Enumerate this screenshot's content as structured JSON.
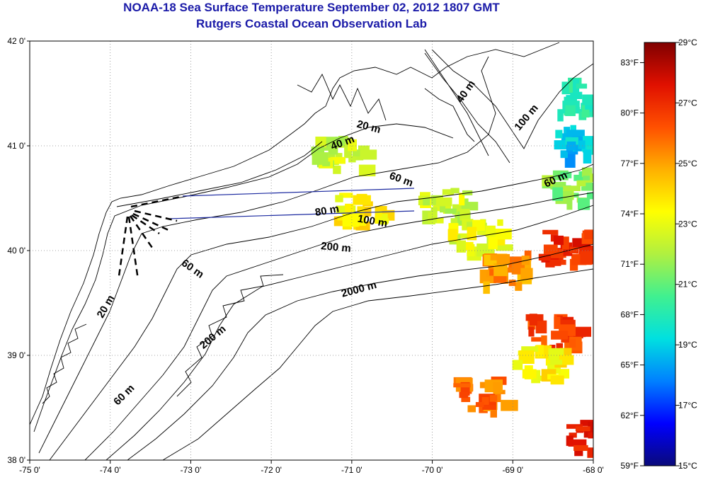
{
  "header": {
    "title": "NOAA-18 Sea Surface Temperature September 02, 2012 1807 GMT",
    "subtitle": "Rutgers Coastal Ocean Observation Lab"
  },
  "map": {
    "lon_ticks": [
      "-75 0'",
      "-74 0'",
      "-73 0'",
      "-72 0'",
      "-71 0'",
      "-70 0'",
      "-69 0'",
      "-68 0'"
    ],
    "lat_ticks": [
      "42 0'",
      "41 0'",
      "40 0'",
      "39 0'",
      "38 0'"
    ],
    "lon_range": [
      -75,
      -68
    ],
    "lat_range": [
      38,
      42
    ],
    "grid": "dotted",
    "contour_labels": [
      {
        "text": "40 m",
        "lon": -69.55,
        "lat": 41.5,
        "angle": -55
      },
      {
        "text": "20 m",
        "lon": -70.8,
        "lat": 41.15,
        "angle": 15
      },
      {
        "text": "40 m",
        "lon": -71.1,
        "lat": 41.0,
        "angle": -20
      },
      {
        "text": "100 m",
        "lon": -68.8,
        "lat": 41.25,
        "angle": -50
      },
      {
        "text": "60 m",
        "lon": -70.4,
        "lat": 40.65,
        "angle": 20
      },
      {
        "text": "60 m",
        "lon": -68.45,
        "lat": 40.65,
        "angle": -25
      },
      {
        "text": "80 m",
        "lon": -71.3,
        "lat": 40.35,
        "angle": -10
      },
      {
        "text": "100 m",
        "lon": -70.75,
        "lat": 40.25,
        "angle": 10
      },
      {
        "text": "200 m",
        "lon": -71.2,
        "lat": 40.0,
        "angle": 5
      },
      {
        "text": "60 m",
        "lon": -73.0,
        "lat": 39.8,
        "angle": 35
      },
      {
        "text": "2000 m",
        "lon": -70.9,
        "lat": 39.6,
        "angle": -15
      },
      {
        "text": "20 m",
        "lon": -74.02,
        "lat": 39.45,
        "angle": -60
      },
      {
        "text": "200 m",
        "lon": -72.7,
        "lat": 39.15,
        "angle": -40
      },
      {
        "text": "60 m",
        "lon": -73.8,
        "lat": 38.6,
        "angle": -45
      }
    ],
    "sst_patches_c": [
      {
        "lon": -71.2,
        "lat": 40.95,
        "c": 22.5
      },
      {
        "lon": -70.95,
        "lat": 40.4,
        "c": 23.6
      },
      {
        "lon": -69.9,
        "lat": 40.45,
        "c": 22.6
      },
      {
        "lon": -69.5,
        "lat": 40.15,
        "c": 23.0
      },
      {
        "lon": -69.15,
        "lat": 39.85,
        "c": 25.2
      },
      {
        "lon": -68.4,
        "lat": 40.05,
        "c": 27.0
      },
      {
        "lon": -68.55,
        "lat": 39.25,
        "c": 26.6
      },
      {
        "lon": -68.7,
        "lat": 38.95,
        "c": 23.5
      },
      {
        "lon": -69.45,
        "lat": 38.65,
        "c": 25.8
      },
      {
        "lon": -68.25,
        "lat": 41.05,
        "c": 18.8
      },
      {
        "lon": -68.15,
        "lat": 41.5,
        "c": 19.8
      },
      {
        "lon": -68.35,
        "lat": 40.65,
        "c": 21.5
      },
      {
        "lon": -68.05,
        "lat": 38.25,
        "c": 27.5
      }
    ]
  },
  "colorbar": {
    "range_c": [
      15,
      29
    ],
    "colors": [
      "#0a0a7a",
      "#0000ff",
      "#0080ff",
      "#00e0e0",
      "#40f090",
      "#b0f040",
      "#ffff00",
      "#ffb000",
      "#ff5000",
      "#e01000",
      "#800000"
    ],
    "f_labels": [
      "83°F",
      "80°F",
      "77°F",
      "74°F",
      "71°F",
      "68°F",
      "65°F",
      "62°F",
      "59°F"
    ],
    "c_labels": [
      "29°C",
      "27°C",
      "25°C",
      "23°C",
      "21°C",
      "19°C",
      "17°C",
      "15°C"
    ]
  },
  "colors": {
    "title": "#1a1aa8",
    "transect": "#1c2aa0"
  }
}
